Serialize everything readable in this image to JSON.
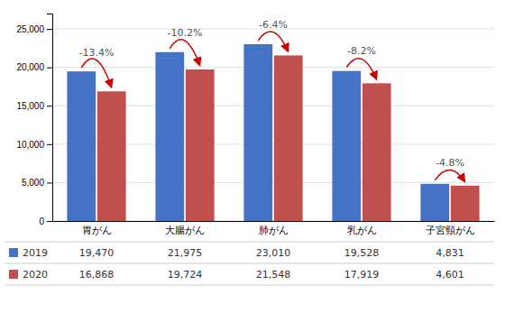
{
  "chart_data": {
    "type": "bar",
    "categories": [
      "胃がん",
      "大腸がん",
      "肺がん",
      "乳がん",
      "子宮頸がん"
    ],
    "series": [
      {
        "name": "2019",
        "color": "#4472c4",
        "values": [
          19470,
          21975,
          23010,
          19528,
          4831
        ],
        "value_labels": [
          "19,470",
          "21,975",
          "23,010",
          "19,528",
          "4,831"
        ]
      },
      {
        "name": "2020",
        "color": "#c0504d",
        "values": [
          16868,
          19724,
          21548,
          17919,
          4601
        ],
        "value_labels": [
          "16,868",
          "19,724",
          "21,548",
          "17,919",
          "4,601"
        ]
      }
    ],
    "ylim": [
      0,
      27000
    ],
    "yticks": [
      0,
      {
        "value": 5000,
        "label": "5,000"
      },
      {
        "value": 10000,
        "label": "10,000"
      },
      {
        "value": 15000,
        "label": "15,000"
      },
      {
        "value": 20000,
        "label": "20,000"
      },
      {
        "value": 25000,
        "label": "25,000"
      }
    ],
    "grid": true,
    "data_labels": true,
    "annotations": [
      {
        "text": "-13.4%",
        "color": "#cc0000"
      },
      {
        "text": "-10.2%",
        "color": "#cc0000"
      },
      {
        "text": "-6.4%",
        "color": "#cc0000"
      },
      {
        "text": "-8.2%",
        "color": "#cc0000"
      },
      {
        "text": "-4.8%",
        "color": "#cc0000"
      }
    ]
  }
}
